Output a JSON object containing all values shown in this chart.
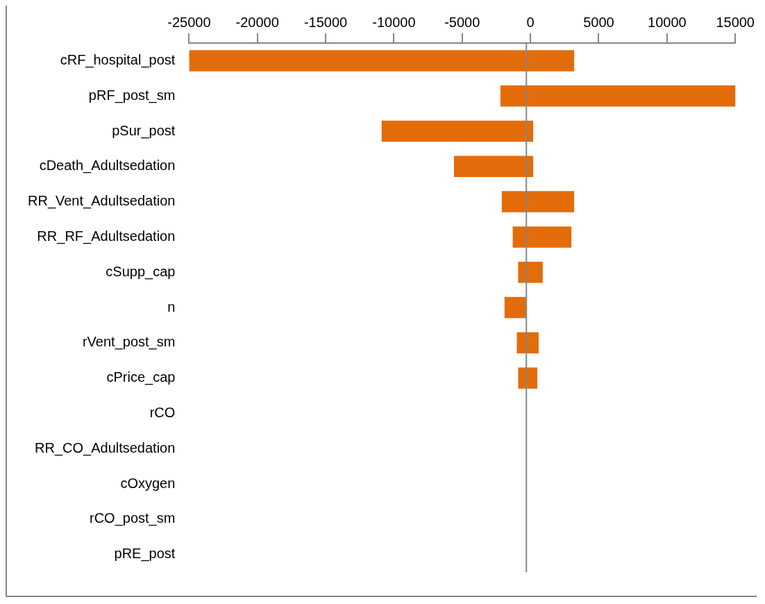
{
  "chart_data": {
    "type": "bar",
    "orientation": "horizontal",
    "categories": [
      "cRF_hospital_post",
      "pRF_post_sm",
      "pSur_post",
      "cDeath_Adultsedation",
      "RR_Vent_Adultsedation",
      "RR_RF_Adultsedation",
      "cSupp_cap",
      "n",
      "rVent_post_sm",
      "cPrice_cap",
      "rCO",
      "RR_CO_Adultsedation",
      "cOxygen",
      "rCO_post_sm",
      "pRE_post"
    ],
    "base": [
      -25000,
      -2200,
      -10900,
      -5600,
      -2100,
      -1300,
      -900,
      -1900,
      -1000,
      -900,
      null,
      null,
      null,
      null,
      null
    ],
    "values": [
      28200,
      17400,
      11100,
      5800,
      5300,
      4300,
      1800,
      1600,
      1600,
      1400,
      null,
      null,
      null,
      null,
      null
    ],
    "color": "#e36c0a",
    "xlim": [
      -25000,
      15000
    ],
    "xticks": [
      -25000,
      -20000,
      -15000,
      -10000,
      -5000,
      0,
      5000,
      10000,
      15000
    ],
    "ref_lines": [
      {
        "axis": "x",
        "value": -300,
        "color": "#868686"
      }
    ],
    "grid": false,
    "legend": false
  }
}
